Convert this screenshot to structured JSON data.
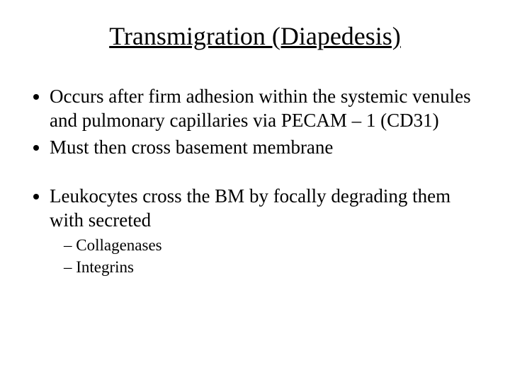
{
  "title": "Transmigration (Diapedesis)",
  "bullets": {
    "b1": "Occurs after firm adhesion within the systemic venules and pulmonary capillaries via PECAM – 1 (CD31)",
    "b2": "Must then cross basement membrane",
    "b3": "Leukocytes cross the BM by focally degrading them with secreted",
    "sub1": "Collagenases",
    "sub2": "Integrins"
  },
  "colors": {
    "background": "#ffffff",
    "text": "#000000"
  },
  "typography": {
    "title_fontsize": 36,
    "bullet_fontsize": 27,
    "sub_bullet_fontsize": 23,
    "font_family": "Times New Roman"
  }
}
